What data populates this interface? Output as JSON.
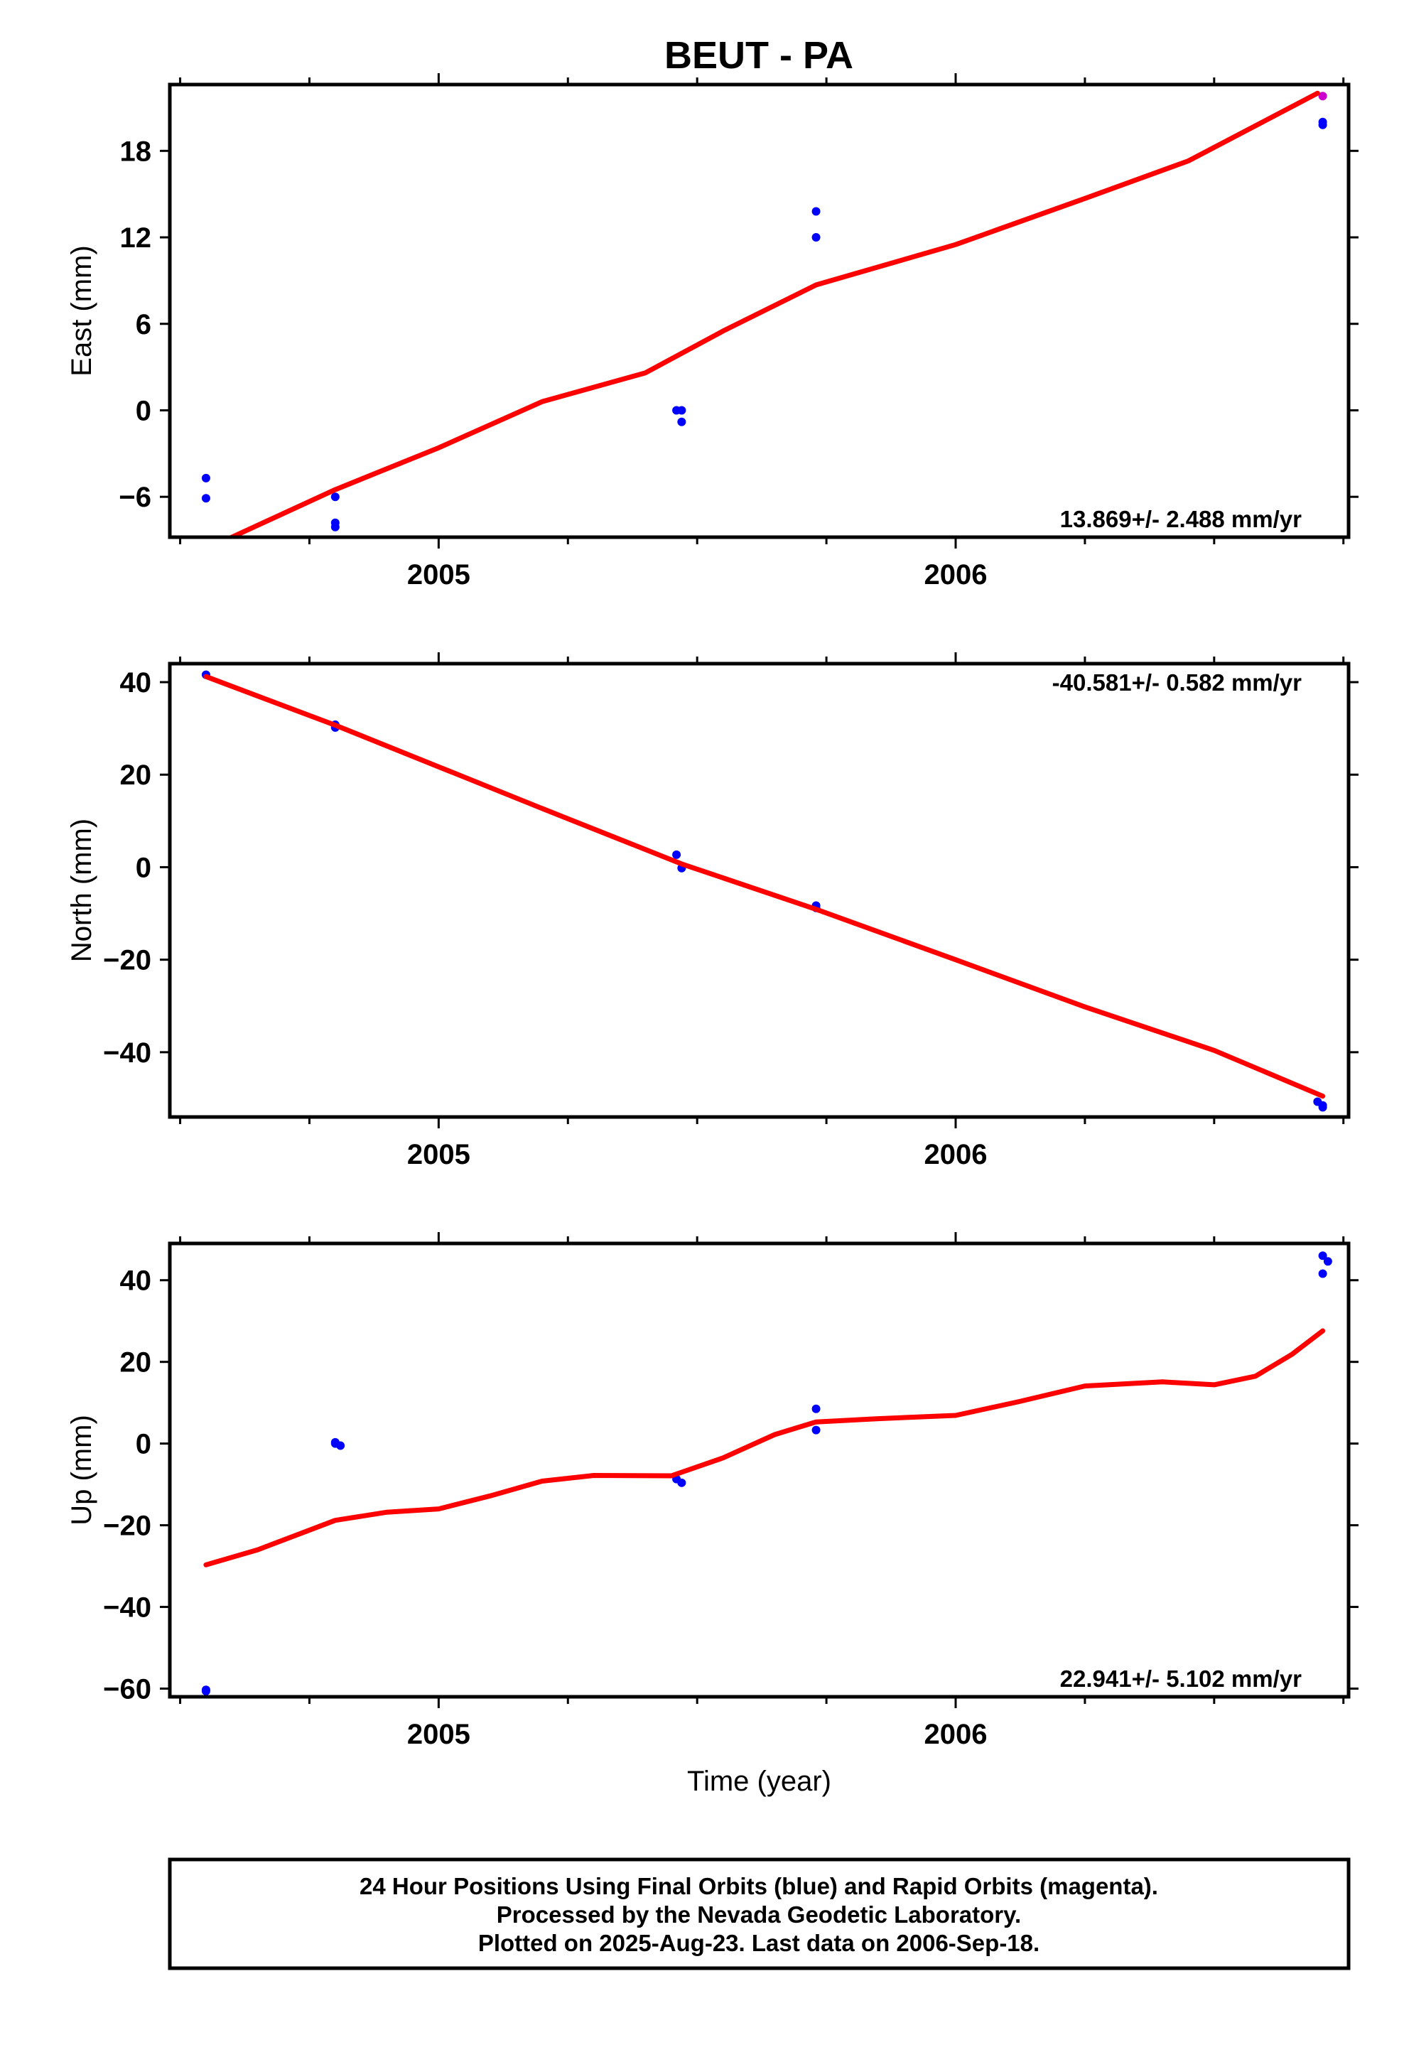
{
  "title": "BEUT - PA",
  "footer": {
    "line1": "24 Hour Positions Using Final Orbits (blue) and Rapid Orbits (magenta).",
    "line2": "Processed by the Nevada Geodetic Laboratory.",
    "line3": "Plotted on 2025-Aug-23. Last data on 2006-Sep-18."
  },
  "colors": {
    "final_orbits": "#0000ff",
    "rapid_orbits": "#cc00cc",
    "fit": "#ff0000"
  },
  "chart_data": [
    {
      "type": "scatter",
      "ylabel": "East (mm)",
      "xlabel": "",
      "xlim": [
        2004.48,
        2006.76
      ],
      "ylim": [
        -8.8,
        22.6
      ],
      "x_ticks": [
        2005,
        2006
      ],
      "y_ticks": [
        -6,
        0,
        6,
        12,
        18
      ],
      "rate_text": "13.869+/- 2.488 mm/yr",
      "rate_position": "bottom-right",
      "series": [
        {
          "name": "Final Orbits (blue)",
          "points": [
            [
              2004.55,
              -4.7
            ],
            [
              2004.55,
              -6.1
            ],
            [
              2004.8,
              -6.0
            ],
            [
              2004.8,
              -7.8
            ],
            [
              2004.8,
              -8.1
            ],
            [
              2005.46,
              0.0
            ],
            [
              2005.47,
              0.0
            ],
            [
              2005.47,
              -0.8
            ],
            [
              2005.73,
              13.8
            ],
            [
              2005.73,
              12.0
            ],
            [
              2006.71,
              19.8
            ],
            [
              2006.71,
              20.0
            ]
          ]
        },
        {
          "name": "Rapid Orbits (magenta)",
          "points": [
            [
              2006.71,
              21.8
            ]
          ]
        },
        {
          "name": "fit",
          "points": [
            [
              2004.6,
              -8.8
            ],
            [
              2004.8,
              -5.5
            ],
            [
              2005.0,
              -2.6
            ],
            [
              2005.2,
              0.6
            ],
            [
              2005.4,
              2.6
            ],
            [
              2005.55,
              5.5
            ],
            [
              2005.73,
              8.7
            ],
            [
              2006.0,
              11.5
            ],
            [
              2006.25,
              14.7
            ],
            [
              2006.45,
              17.3
            ],
            [
              2006.7,
              22.0
            ]
          ]
        }
      ]
    },
    {
      "type": "scatter",
      "ylabel": "North (mm)",
      "xlabel": "",
      "xlim": [
        2004.48,
        2006.76
      ],
      "ylim": [
        -54,
        44
      ],
      "x_ticks": [
        2005,
        2006
      ],
      "y_ticks": [
        -40,
        -20,
        0,
        20,
        40
      ],
      "rate_text": "-40.581+/- 0.582 mm/yr",
      "rate_position": "top-right",
      "series": [
        {
          "name": "Final Orbits (blue)",
          "points": [
            [
              2004.55,
              41.6
            ],
            [
              2004.8,
              30.8
            ],
            [
              2004.8,
              30.2
            ],
            [
              2005.46,
              2.7
            ],
            [
              2005.47,
              -0.2
            ],
            [
              2005.73,
              -8.3
            ],
            [
              2005.73,
              -8.8
            ],
            [
              2006.7,
              -50.7
            ],
            [
              2006.71,
              -51.5
            ],
            [
              2006.71,
              -51.9
            ]
          ]
        },
        {
          "name": "fit",
          "points": [
            [
              2004.55,
              41.2
            ],
            [
              2004.8,
              30.7
            ],
            [
              2005.0,
              21.7
            ],
            [
              2005.2,
              12.7
            ],
            [
              2005.47,
              0.7
            ],
            [
              2005.73,
              -9.1
            ],
            [
              2006.0,
              -20.0
            ],
            [
              2006.25,
              -30.2
            ],
            [
              2006.5,
              -39.6
            ],
            [
              2006.71,
              -49.5
            ]
          ]
        }
      ]
    },
    {
      "type": "scatter",
      "ylabel": "Up (mm)",
      "xlabel": "Time (year)",
      "xlim": [
        2004.48,
        2006.76
      ],
      "ylim": [
        -62,
        49
      ],
      "x_ticks": [
        2005,
        2006
      ],
      "y_ticks": [
        -60,
        -40,
        -20,
        0,
        20,
        40
      ],
      "rate_text": "22.941+/- 5.102 mm/yr",
      "rate_position": "bottom-right",
      "series": [
        {
          "name": "Final Orbits (blue)",
          "points": [
            [
              2004.55,
              -60.3
            ],
            [
              2004.55,
              -60.6
            ],
            [
              2004.8,
              0.0
            ],
            [
              2004.8,
              0.3
            ],
            [
              2004.81,
              -0.5
            ],
            [
              2005.46,
              -8.7
            ],
            [
              2005.47,
              -9.6
            ],
            [
              2005.73,
              8.5
            ],
            [
              2005.73,
              3.3
            ],
            [
              2006.71,
              46.0
            ],
            [
              2006.71,
              41.6
            ],
            [
              2006.72,
              44.6
            ]
          ]
        },
        {
          "name": "fit",
          "points": [
            [
              2004.55,
              -29.7
            ],
            [
              2004.65,
              -26.0
            ],
            [
              2004.8,
              -18.8
            ],
            [
              2004.9,
              -16.8
            ],
            [
              2005.0,
              -16.0
            ],
            [
              2005.1,
              -12.8
            ],
            [
              2005.2,
              -9.2
            ],
            [
              2005.3,
              -7.8
            ],
            [
              2005.45,
              -7.9
            ],
            [
              2005.55,
              -3.5
            ],
            [
              2005.65,
              2.2
            ],
            [
              2005.73,
              5.3
            ],
            [
              2005.85,
              6.1
            ],
            [
              2006.0,
              6.9
            ],
            [
              2006.12,
              10.2
            ],
            [
              2006.25,
              14.1
            ],
            [
              2006.4,
              15.1
            ],
            [
              2006.5,
              14.4
            ],
            [
              2006.58,
              16.5
            ],
            [
              2006.65,
              21.8
            ],
            [
              2006.71,
              27.6
            ]
          ]
        }
      ]
    }
  ]
}
